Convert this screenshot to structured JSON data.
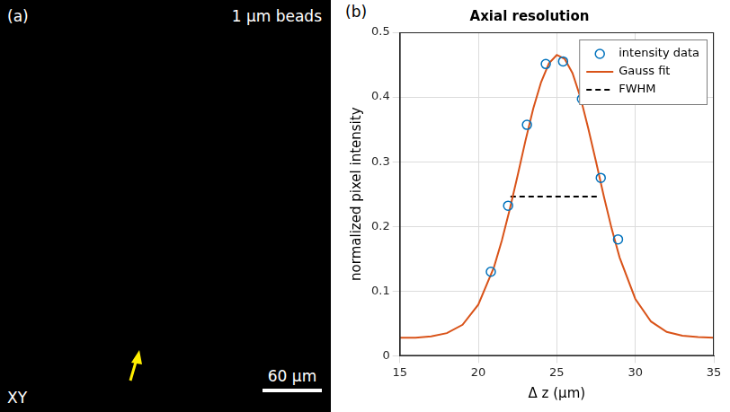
{
  "image_panel": {
    "panel_label": "(a)",
    "caption": "1 μm beads",
    "plane": "XY",
    "scale_bar": "60 μm"
  },
  "chart_data": {
    "panel_label": "(b)",
    "type": "scatter",
    "title": "Axial resolution",
    "x_label": "Δ z (μm)",
    "y_label": "normalized pixel intensity",
    "xlim": [
      15,
      35
    ],
    "xticks": [
      15,
      20,
      25,
      30,
      35
    ],
    "ylim": [
      0,
      0.5
    ],
    "yticks": [
      0,
      0.1,
      0.2,
      0.3,
      0.4,
      0.5
    ],
    "grid": true,
    "legend": "upper right",
    "series": [
      {
        "name": "intensity data",
        "type": "scatter",
        "color": "#0072bd",
        "marker": "circle",
        "x": [
          20.8,
          21.9,
          23.1,
          24.3,
          25.4,
          26.6,
          27.8,
          28.9
        ],
        "values": [
          0.13,
          0.232,
          0.357,
          0.451,
          0.455,
          0.397,
          0.275,
          0.18
        ]
      },
      {
        "name": "Gauss fit",
        "type": "line",
        "color": "#d95319",
        "line_style": "solid",
        "x": [
          15,
          16,
          17,
          18,
          19,
          20,
          21,
          21.5,
          22,
          22.5,
          23,
          23.5,
          24,
          24.5,
          25,
          25.5,
          26,
          26.5,
          27,
          27.5,
          28,
          28.5,
          29,
          30,
          31,
          32,
          33,
          34,
          35
        ],
        "values": [
          0.028,
          0.028,
          0.03,
          0.035,
          0.048,
          0.079,
          0.137,
          0.178,
          0.226,
          0.278,
          0.332,
          0.382,
          0.423,
          0.452,
          0.465,
          0.459,
          0.437,
          0.4,
          0.352,
          0.3,
          0.246,
          0.196,
          0.152,
          0.088,
          0.053,
          0.037,
          0.031,
          0.029,
          0.028
        ]
      },
      {
        "name": "FWHM",
        "type": "line",
        "color": "#000000",
        "line_style": "dashed",
        "x": [
          22.05,
          27.75
        ],
        "values": [
          0.246,
          0.246
        ]
      }
    ]
  }
}
